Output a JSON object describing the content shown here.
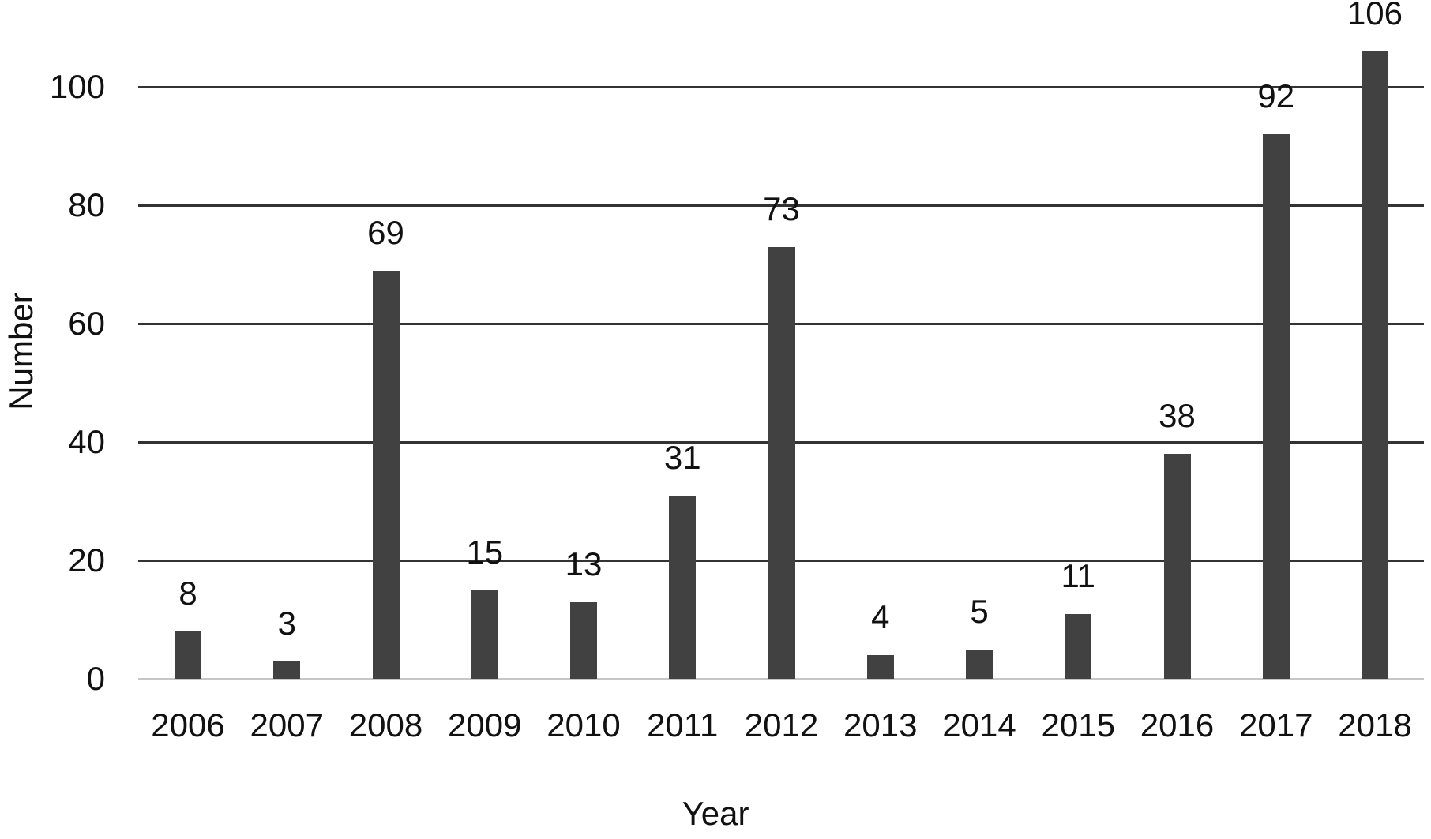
{
  "chart_data": {
    "type": "bar",
    "title": "",
    "categories": [
      "2006",
      "2007",
      "2008",
      "2009",
      "2010",
      "2011",
      "2012",
      "2013",
      "2014",
      "2015",
      "2016",
      "2017",
      "2018"
    ],
    "values": [
      8,
      3,
      69,
      15,
      13,
      31,
      73,
      4,
      5,
      11,
      38,
      92,
      106
    ],
    "xlabel": "Year",
    "ylabel": "Number",
    "ylim": [
      0,
      110
    ],
    "yticks": [
      0,
      20,
      40,
      60,
      80,
      100
    ],
    "grid": "horizontal",
    "legend": "none",
    "bar_color": "#414141",
    "gridline_color": "#333333",
    "baseline_color": "#c6c6c6",
    "text_color": "#111111",
    "background_color": "#ffffff"
  }
}
